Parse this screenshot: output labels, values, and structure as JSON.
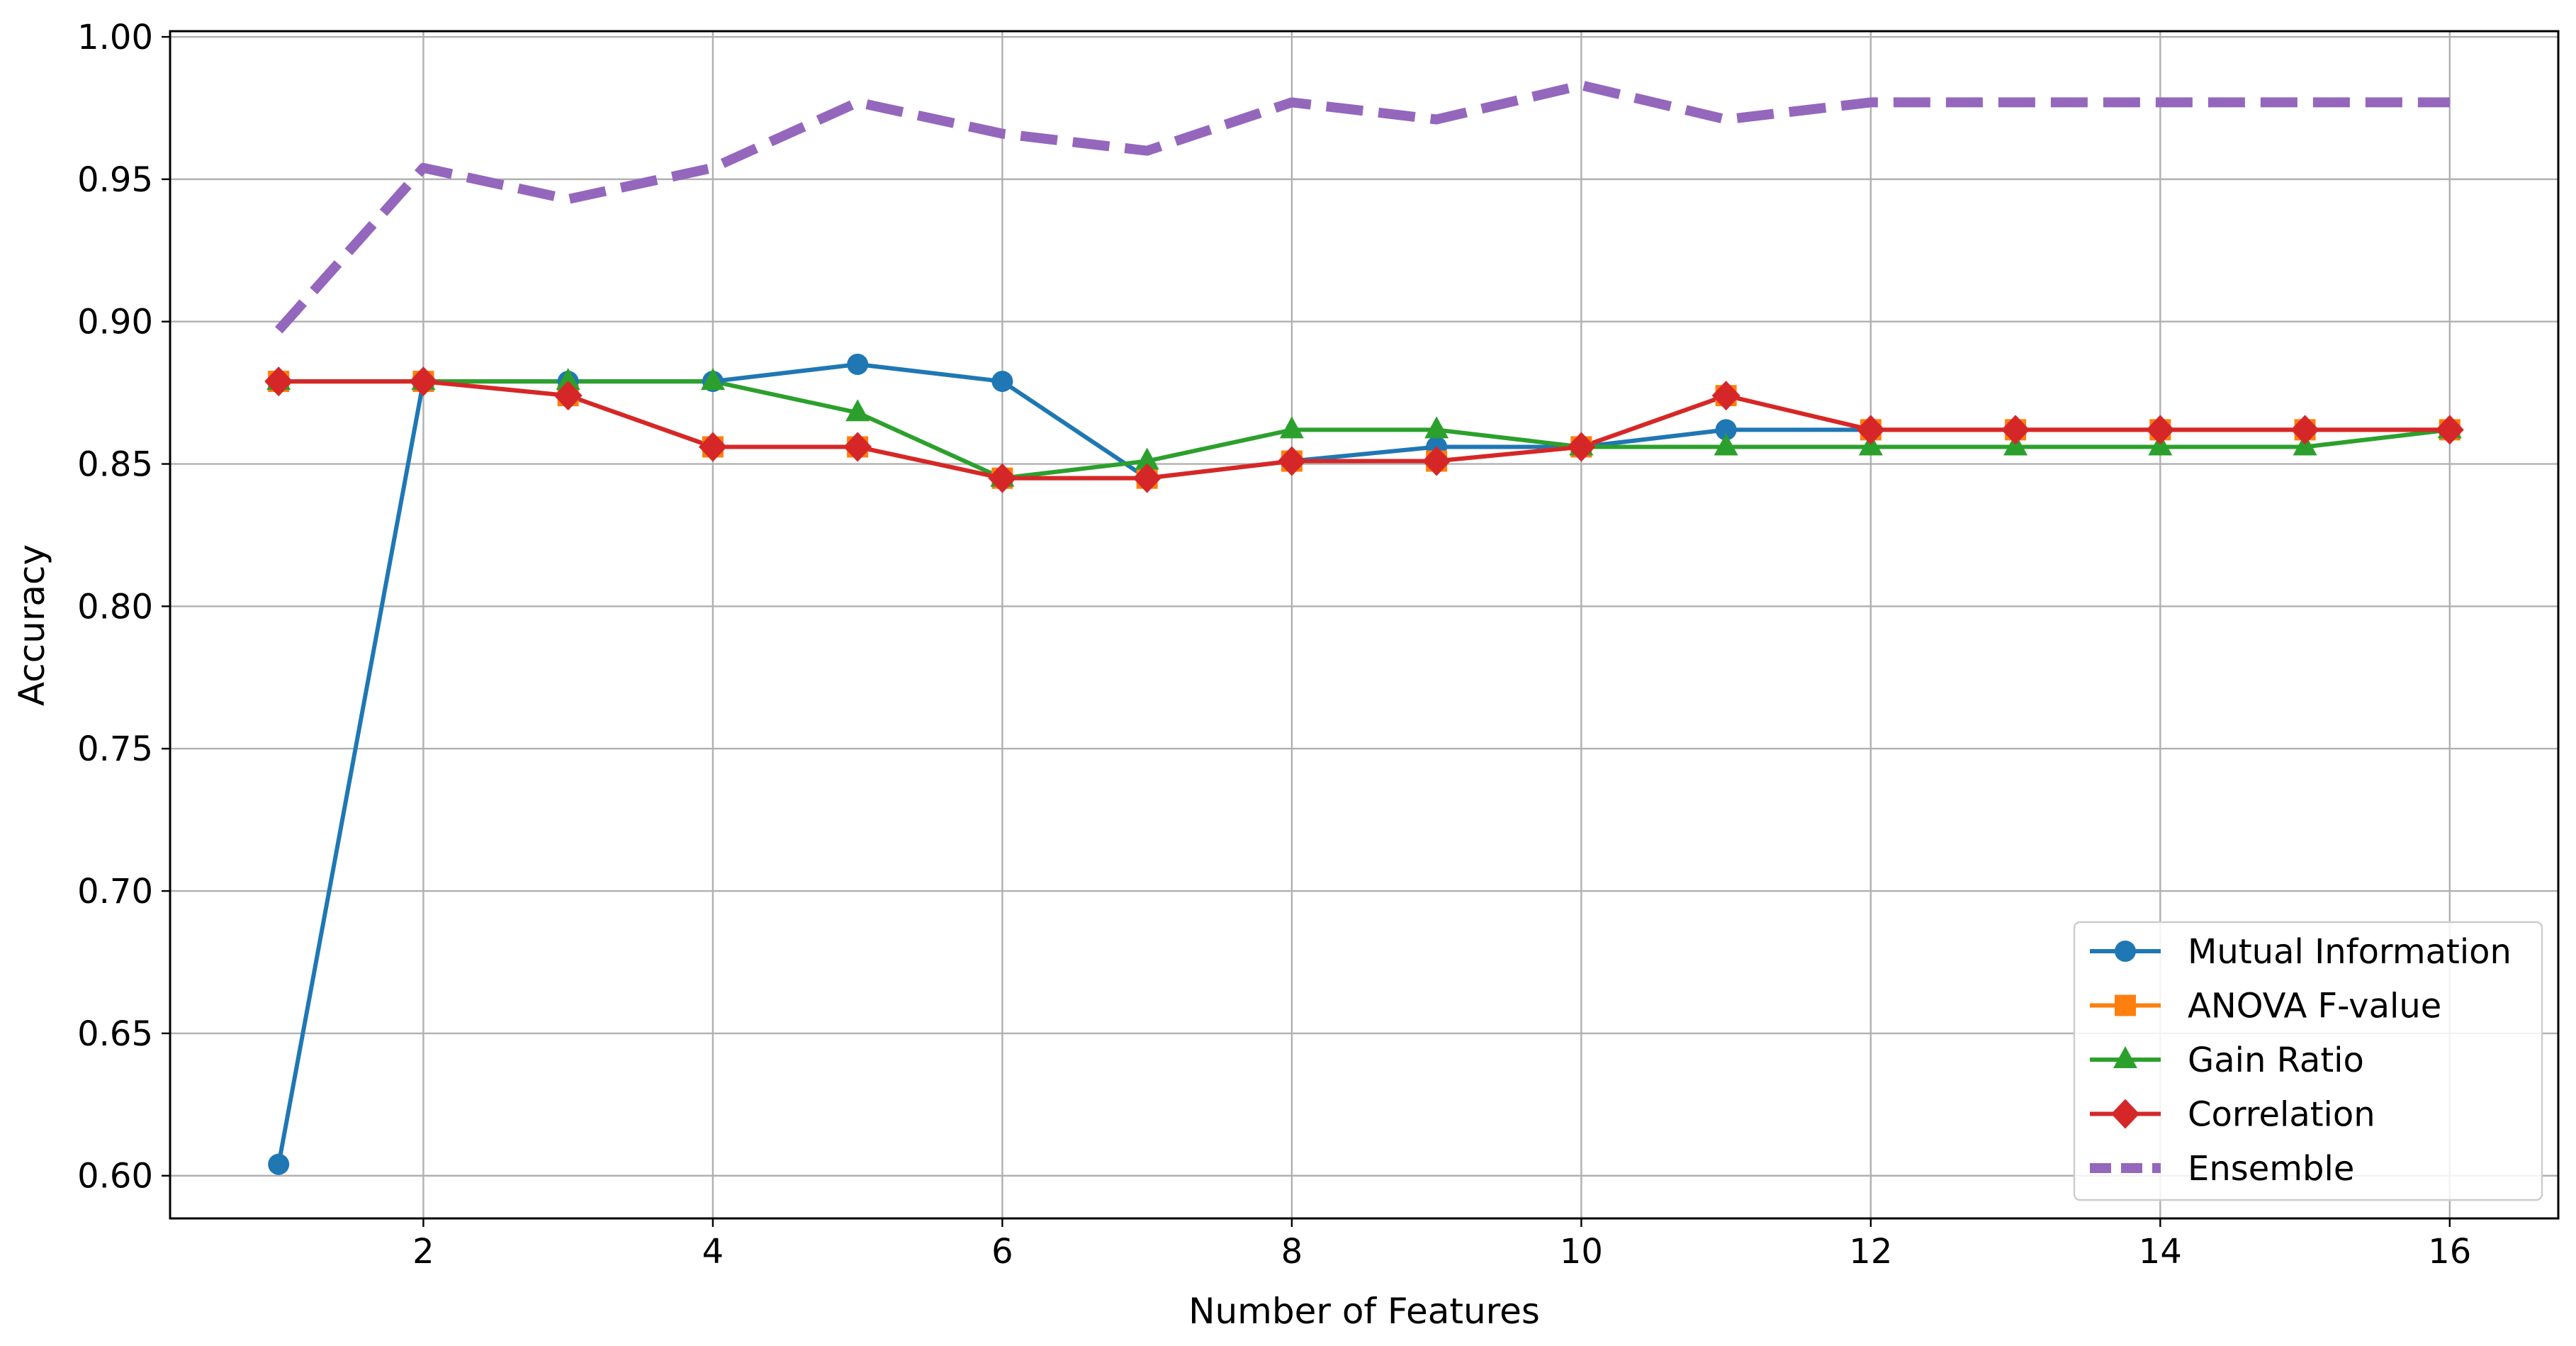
{
  "chart_data": {
    "type": "line",
    "xlabel": "Number of Features",
    "ylabel": "Accuracy",
    "x": [
      1,
      2,
      3,
      4,
      5,
      6,
      7,
      8,
      9,
      10,
      11,
      12,
      13,
      14,
      15,
      16
    ],
    "xticks": [
      2,
      4,
      6,
      8,
      10,
      12,
      14,
      16
    ],
    "xtick_labels": [
      "2",
      "4",
      "6",
      "8",
      "10",
      "12",
      "14",
      "16"
    ],
    "xlim": [
      0.25,
      16.75
    ],
    "ylim": [
      0.585,
      1.002
    ],
    "yticks": [
      0.6,
      0.65,
      0.7,
      0.75,
      0.8,
      0.85,
      0.9,
      0.95,
      1.0
    ],
    "ytick_labels": [
      "0.60",
      "0.65",
      "0.70",
      "0.75",
      "0.80",
      "0.85",
      "0.90",
      "0.95",
      "1.00"
    ],
    "grid": true,
    "legend_position": "lower-right",
    "series": [
      {
        "name": "Mutual Information",
        "color": "#1f77b4",
        "marker": "circle",
        "linestyle": "solid",
        "values": [
          0.604,
          0.879,
          0.879,
          0.879,
          0.885,
          0.879,
          0.845,
          0.851,
          0.856,
          0.856,
          0.862,
          0.862,
          0.862,
          0.862,
          0.862,
          0.862
        ]
      },
      {
        "name": "ANOVA F-value",
        "color": "#ff7f0e",
        "marker": "square",
        "linestyle": "solid",
        "values": [
          0.879,
          0.879,
          0.874,
          0.856,
          0.856,
          0.845,
          0.845,
          0.851,
          0.851,
          0.856,
          0.874,
          0.862,
          0.862,
          0.862,
          0.862,
          0.862
        ]
      },
      {
        "name": "Gain Ratio",
        "color": "#2ca02c",
        "marker": "triangle",
        "linestyle": "solid",
        "values": [
          0.879,
          0.879,
          0.879,
          0.879,
          0.868,
          0.845,
          0.851,
          0.862,
          0.862,
          0.856,
          0.856,
          0.856,
          0.856,
          0.856,
          0.856,
          0.862
        ]
      },
      {
        "name": "Correlation",
        "color": "#d62728",
        "marker": "diamond",
        "linestyle": "solid",
        "values": [
          0.879,
          0.879,
          0.874,
          0.856,
          0.856,
          0.845,
          0.845,
          0.851,
          0.851,
          0.856,
          0.874,
          0.862,
          0.862,
          0.862,
          0.862,
          0.862
        ]
      },
      {
        "name": "Ensemble",
        "color": "#9467bd",
        "marker": "none",
        "linestyle": "dashed",
        "values": [
          0.897,
          0.954,
          0.943,
          0.954,
          0.977,
          0.966,
          0.96,
          0.977,
          0.971,
          0.983,
          0.971,
          0.977,
          0.977,
          0.977,
          0.977,
          0.977
        ]
      }
    ]
  }
}
